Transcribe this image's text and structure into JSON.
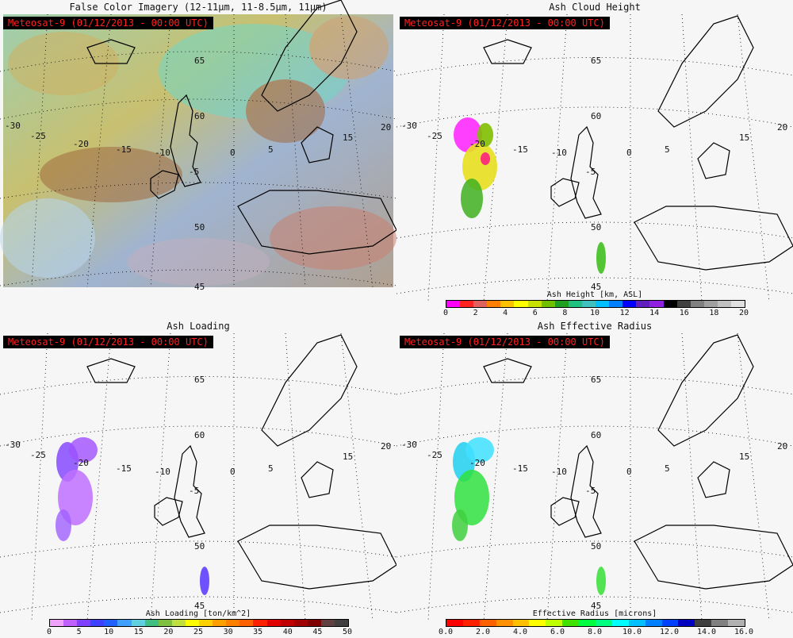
{
  "panels": [
    {
      "title": "False Color Imagery (12-11μm, 11-8.5μm, 11μm)",
      "stamp": "Meteosat-9  (01/12/2013 - 00:00 UTC)"
    },
    {
      "title": "Ash Cloud Height",
      "stamp": "Meteosat-9  (01/12/2013 - 00:00 UTC)",
      "colorbar": {
        "title": "Ash Height [km, ASL]",
        "ticks": [
          "0",
          "2",
          "4",
          "6",
          "8",
          "10",
          "12",
          "14",
          "16",
          "18",
          "20"
        ],
        "colors": [
          "#ff00ff",
          "#ff2020",
          "#e06060",
          "#ff8000",
          "#ffc000",
          "#ffff00",
          "#c8e000",
          "#70c000",
          "#20a020",
          "#20c080",
          "#40c0c0",
          "#00c0ff",
          "#0080ff",
          "#0000ff",
          "#6020c0",
          "#9020e0",
          "#000000",
          "#404040",
          "#808080",
          "#a0a0a0",
          "#c0c0c0",
          "#e0e0e0"
        ]
      }
    },
    {
      "title": "Ash Loading",
      "stamp": "Meteosat-9  (01/12/2013 - 00:00 UTC)",
      "colorbar": {
        "title": "Ash Loading [ton/km^2]",
        "ticks": [
          "0",
          "5",
          "10",
          "15",
          "20",
          "25",
          "30",
          "35",
          "40",
          "45",
          "50"
        ],
        "colors": [
          "#f0a0ff",
          "#c060ff",
          "#8040ff",
          "#4040ff",
          "#2060ff",
          "#40a0ff",
          "#60d0e0",
          "#40c080",
          "#80c040",
          "#c0e040",
          "#ffff00",
          "#ffd000",
          "#ffa000",
          "#ff8000",
          "#ff6000",
          "#ff2000",
          "#e00000",
          "#c00000",
          "#a00000",
          "#800000",
          "#604040",
          "#404040"
        ]
      }
    },
    {
      "title": "Ash Effective Radius",
      "stamp": "Meteosat-9  (01/12/2013 - 00:00 UTC)",
      "colorbar": {
        "title": "Effective Radius [microns]",
        "ticks": [
          "0.0",
          "2.0",
          "4.0",
          "6.0",
          "8.0",
          "10.0",
          "12.0",
          "14.0",
          "16.0"
        ],
        "colors": [
          "#ff0000",
          "#ff2000",
          "#ff6000",
          "#ff9000",
          "#ffc000",
          "#ffff00",
          "#c0ff00",
          "#40e000",
          "#00ff40",
          "#00ff80",
          "#00ffff",
          "#00c0ff",
          "#0080ff",
          "#0040ff",
          "#0000c0",
          "#404040",
          "#808080",
          "#b0b0b0"
        ]
      }
    }
  ],
  "grid_labels": {
    "lat": [
      "65",
      "60",
      "50",
      "45"
    ],
    "lon": [
      "-30",
      "-25",
      "-20",
      "-15",
      "-10",
      "-5",
      "0",
      "5",
      "15",
      "20"
    ]
  },
  "colors": {
    "coast": "#000000",
    "grid": "#000000"
  }
}
